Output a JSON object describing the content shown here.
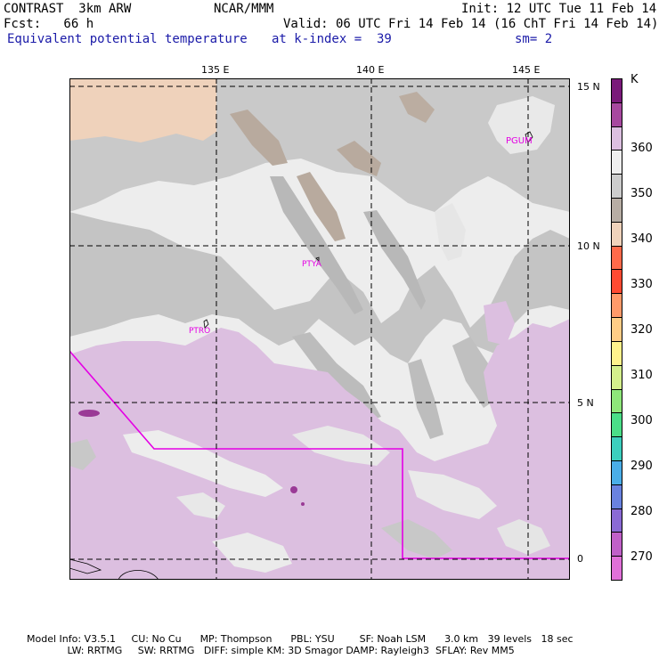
{
  "header": {
    "model": "CONTRAST  3km ARW",
    "org": "NCAR/MMM",
    "init": "Init: 12 UTC Tue 11 Feb 14",
    "fcst": "Fcst:   66 h",
    "valid": "Valid: 06 UTC Fri 14 Feb 14 (16 ChT Fri 14 Feb 14)",
    "field": "Equivalent potential temperature",
    "level": "at k-index =  39",
    "smooth": "sm= 2"
  },
  "map": {
    "lon_labels": [
      "135 E",
      "140 E",
      "145 E"
    ],
    "lat_labels": [
      "15 N",
      "10 N",
      "5 N",
      "0"
    ],
    "stations": [
      "PGUM",
      "PTYA",
      "PTRO"
    ],
    "colors": {
      "very_light": "#ededed",
      "light_gray": "#c8c8c8",
      "mid_gray": "#b4b4b4",
      "tan": "#b9ab9f",
      "peach": "#efd2bb",
      "lavender": "#dcbfe0",
      "dark_purple": "#9a3a96",
      "boundary": "#e400e4",
      "grid": "#000000"
    }
  },
  "colorbar": {
    "unit": "K",
    "labels": [
      "360",
      "350",
      "340",
      "330",
      "320",
      "310",
      "300",
      "290",
      "280",
      "270"
    ],
    "colors": [
      "#7a1a7a",
      "#a7489f",
      "#dcbfe0",
      "#eeeeee",
      "#cccccc",
      "#b7ada4",
      "#efd2bb",
      "#ff6a4a",
      "#ff4a32",
      "#ff9a6a",
      "#ffcd86",
      "#fff28c",
      "#d4ef8c",
      "#8ee67a",
      "#4ade88",
      "#3ccfbe",
      "#4aaee8",
      "#6a82e0",
      "#8a6ad4",
      "#c060c8",
      "#e070d8"
    ]
  },
  "footer": {
    "line1": "Model Info: V3.5.1     CU: No Cu      MP: Thompson      PBL: YSU        SF: Noah LSM      3.0 km   39 levels   18 sec",
    "line2": "             LW: RRTMG     SW: RRTMG   DIFF: simple KM: 3D Smagor DAMP: Rayleigh3  SFLAY: Rev MM5"
  }
}
